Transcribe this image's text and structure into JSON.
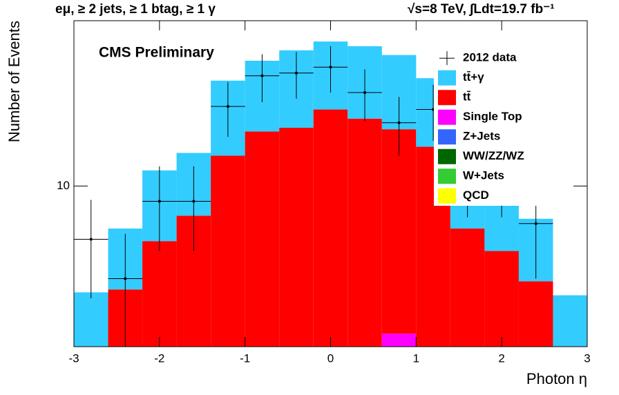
{
  "chart_data": {
    "type": "histogram",
    "header_left": "eμ, ≥ 2 jets, ≥ 1 btag, ≥ 1 γ",
    "header_right": "√s=8 TeV,  ∫Ldt=19.7 fb⁻¹",
    "annotation": "CMS Preliminary",
    "xlabel": "Photon η",
    "ylabel": "Number of Events",
    "bins": [
      -3,
      -2.6,
      -2.2,
      -1.8,
      -1.4,
      -1,
      -0.6,
      -0.2,
      0.2,
      0.6,
      1,
      1.4,
      1.8,
      2.2,
      2.6,
      3
    ],
    "xlim": [
      -3,
      3
    ],
    "xticks": [
      -3,
      -2,
      -1,
      0,
      1,
      2,
      3
    ],
    "ylim": [
      2.6,
      40
    ],
    "yticks": [
      10
    ],
    "log_y": true,
    "series": [
      {
        "name": "tt̄+γ",
        "color": "#33ccff",
        "values": [
          4.1,
          2.8,
          5.1,
          5.4,
          11.3,
          12.8,
          14.9,
          14.6,
          14.7,
          13.9,
          10.8,
          8,
          4.2,
          3.1,
          4
        ]
      },
      {
        "name": "tt̄",
        "color": "#ff0000",
        "values": [
          0,
          4.2,
          6.3,
          7.8,
          12.9,
          15.8,
          16.3,
          19,
          17.6,
          13.2,
          13.9,
          7,
          5.8,
          4.5,
          0
        ]
      },
      {
        "name": "Single Top",
        "color": "#ff00ff",
        "values": [
          0,
          0,
          0,
          0,
          0,
          0,
          0,
          0,
          0,
          2.9,
          0,
          0,
          0,
          0,
          0
        ]
      },
      {
        "name": "Z+Jets",
        "color": "#3366ff",
        "values": [
          0,
          0,
          0,
          0,
          0,
          0,
          0,
          0,
          0,
          0,
          0,
          0,
          0,
          0,
          0
        ]
      },
      {
        "name": "WW/ZZ/WZ",
        "color": "#006600",
        "values": [
          0,
          0,
          0,
          0,
          0,
          0,
          0,
          0,
          0,
          0,
          0,
          0,
          0,
          0,
          0
        ]
      },
      {
        "name": "W+Jets",
        "color": "#33cc33",
        "values": [
          0,
          0,
          0,
          0,
          0,
          0,
          0,
          0,
          0,
          0,
          0,
          0,
          0,
          0,
          0
        ]
      },
      {
        "name": "QCD",
        "color": "#ffff00",
        "values": [
          0,
          0,
          0,
          0,
          0,
          0,
          0,
          0,
          0,
          0,
          0,
          0,
          0,
          0,
          0
        ]
      }
    ],
    "data": {
      "name": "2012 data",
      "color": "#000000",
      "x": [
        -2.8,
        -2.4,
        -2,
        -1.6,
        -1.2,
        -0.8,
        -0.4,
        0,
        0.4,
        0.8,
        1.2,
        1.6,
        2,
        2.4,
        2.8
      ],
      "values": [
        6.4,
        4.6,
        8.8,
        8.8,
        19.5,
        25.2,
        25.8,
        27.1,
        21.9,
        17,
        19,
        11,
        11,
        7.3,
        null
      ],
      "errors": [
        2.5,
        2.1,
        3,
        3,
        4.4,
        5,
        5,
        5.2,
        4.7,
        4.1,
        4.4,
        3.3,
        3.3,
        2.7,
        null
      ]
    }
  }
}
